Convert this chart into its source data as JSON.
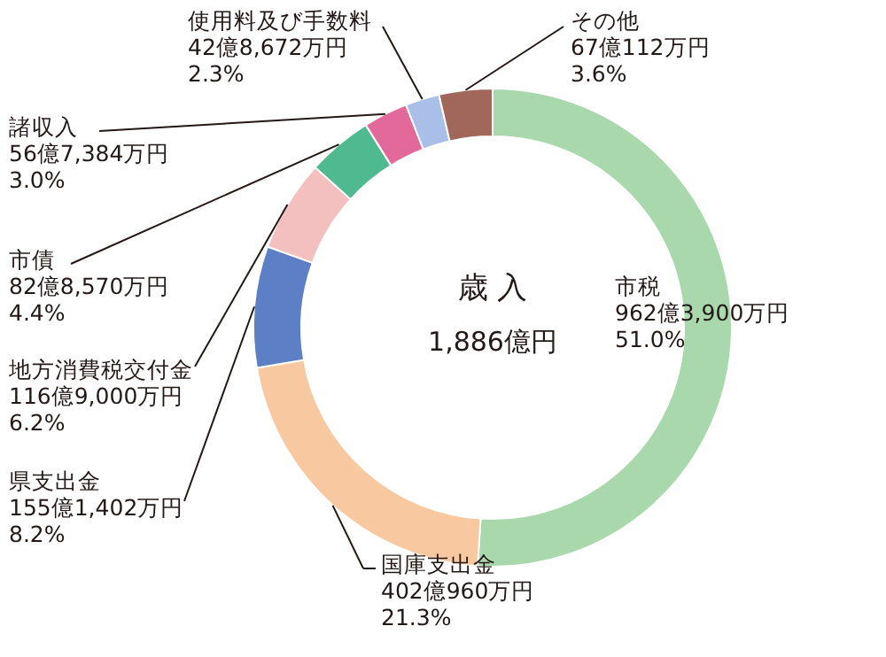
{
  "chart_data": {
    "type": "donut",
    "title": "歳 入",
    "subtitle": "1,886億円",
    "categories": [
      "市税",
      "国庫支出金",
      "県支出金",
      "地方消費税交付金",
      "市債",
      "諸収入",
      "使用料及び手数料",
      "その他"
    ],
    "values": [
      51.0,
      21.3,
      8.2,
      6.2,
      4.4,
      3.0,
      2.3,
      3.6
    ],
    "colors": [
      "#a8d8ab",
      "#f8c9a0",
      "#5d7fc6",
      "#f4bfbf",
      "#4fba8f",
      "#e2699a",
      "#a9bfe8",
      "#a1675a"
    ],
    "value_labels": [
      "962億3,900万円\n51.0%",
      "402億960万円\n21.3%",
      "155億1,402万円\n8.2%",
      "116億9,000万円\n6.2%",
      "82億8,570万円\n4.4%",
      "56億7,384万円\n3.0%",
      "42億8,672万円\n2.3%",
      "67億112万円\n3.6%"
    ]
  }
}
